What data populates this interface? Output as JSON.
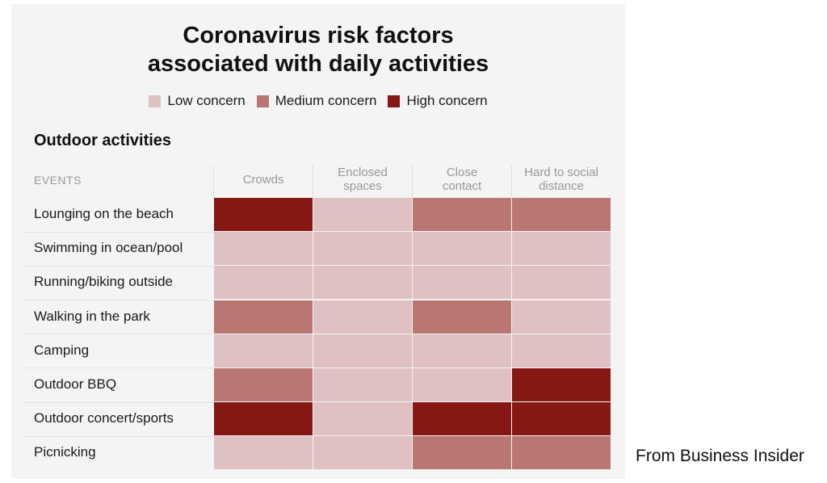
{
  "chart_data": {
    "type": "heatmap",
    "title": [
      "Coronavirus risk factors",
      "associated with daily activities"
    ],
    "section": "Outdoor activities",
    "row_header": "EVENTS",
    "columns": [
      [
        "Crowds"
      ],
      [
        "Enclosed",
        "spaces"
      ],
      [
        "Close",
        "contact"
      ],
      [
        "Hard to social",
        "distance"
      ]
    ],
    "legend": [
      {
        "key": "low",
        "label": "Low concern",
        "color": "#dfc1c1"
      },
      {
        "key": "medium",
        "label": "Medium concern",
        "color": "#b97673"
      },
      {
        "key": "high",
        "label": "High concern",
        "color": "#861814"
      }
    ],
    "rows": [
      {
        "label": "Lounging on the beach",
        "levels": [
          "high",
          "low",
          "medium",
          "medium"
        ]
      },
      {
        "label": "Swimming in ocean/pool",
        "levels": [
          "low",
          "low",
          "low",
          "low"
        ]
      },
      {
        "label": "Running/biking outside",
        "levels": [
          "low",
          "low",
          "low",
          "low"
        ]
      },
      {
        "label": "Walking in the park",
        "levels": [
          "medium",
          "low",
          "medium",
          "low"
        ]
      },
      {
        "label": "Camping",
        "levels": [
          "low",
          "low",
          "low",
          "low"
        ]
      },
      {
        "label": "Outdoor BBQ",
        "levels": [
          "medium",
          "low",
          "low",
          "high"
        ]
      },
      {
        "label": "Outdoor concert/sports",
        "levels": [
          "high",
          "low",
          "high",
          "high"
        ]
      },
      {
        "label": "Picnicking",
        "levels": [
          "low",
          "low",
          "medium",
          "medium"
        ]
      }
    ]
  },
  "credit": "From Business Insider"
}
